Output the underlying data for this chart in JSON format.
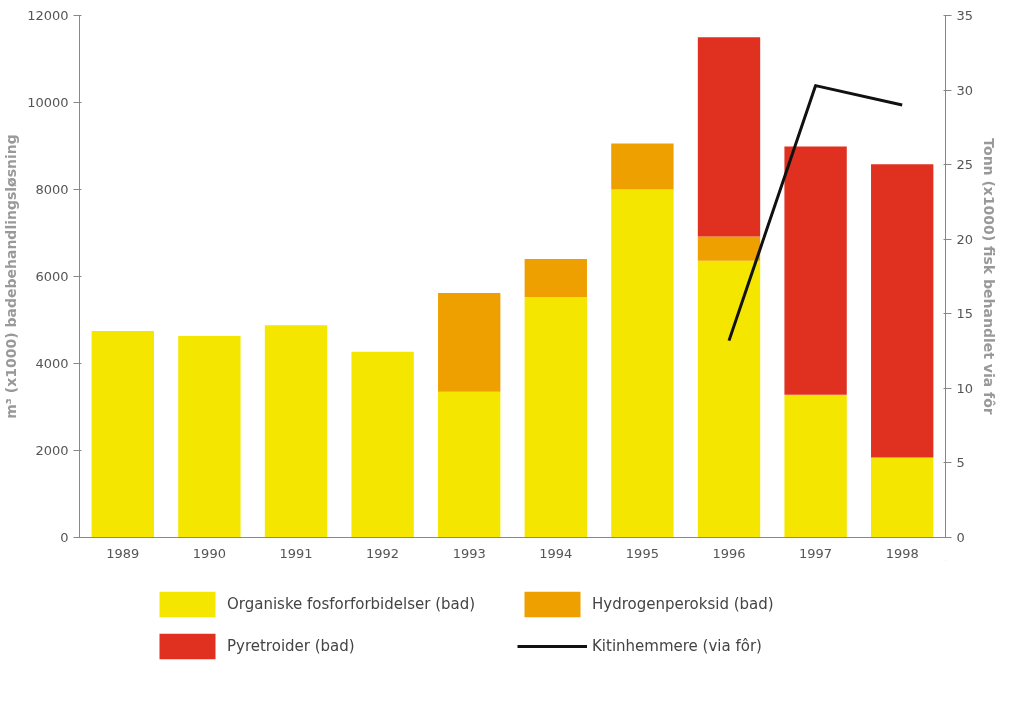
{
  "chart_data": {
    "type": "bar",
    "stacked": true,
    "ylabel": "m³ (x1000) badebehandlingsløsning",
    "y2label": "Tonn (x1000) fisk behandlet via fôr",
    "categories": [
      "1989",
      "1990",
      "1991",
      "1992",
      "1993",
      "1994",
      "1995",
      "1996",
      "1997",
      "1998"
    ],
    "series": [
      {
        "name": "Organiske fosforforbidelser (bad)",
        "color": "#f5e600",
        "values": [
          4750,
          4630,
          4880,
          4270,
          3350,
          5530,
          8000,
          6360,
          3280,
          1840
        ]
      },
      {
        "name": "Hydrogenperoksid (bad)",
        "color": "#eea000",
        "values": [
          null,
          null,
          null,
          null,
          2270,
          870,
          1060,
          560,
          null,
          null
        ]
      },
      {
        "name": "Pyretroider (bad)",
        "color": "#e03020",
        "values": [
          null,
          null,
          null,
          null,
          null,
          null,
          null,
          4580,
          5710,
          6740
        ]
      },
      {
        "name": "Kitinhemmere (via fôr)",
        "color": "#111111",
        "type": "line",
        "axis": "y2",
        "values": [
          null,
          null,
          null,
          null,
          null,
          null,
          null,
          13.2,
          30.3,
          29.0
        ]
      }
    ],
    "ylim": [
      0,
      12000
    ],
    "yticks": [
      0,
      2000,
      4000,
      6000,
      8000,
      10000,
      12000
    ],
    "y2lim": [
      0,
      35
    ],
    "y2ticks": [
      0,
      5,
      10,
      15,
      20,
      25,
      30,
      35
    ],
    "grid": false,
    "legend": "bottom"
  }
}
